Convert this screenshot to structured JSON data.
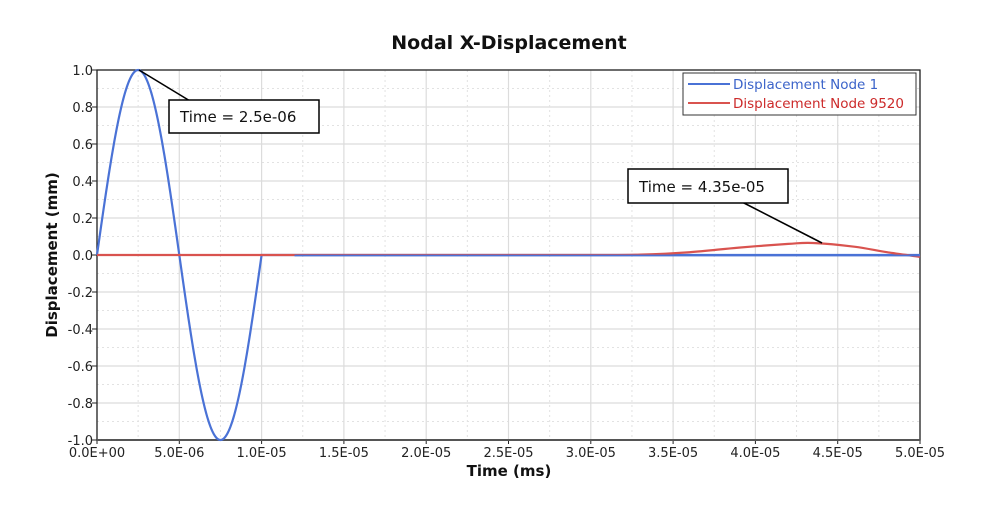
{
  "chart_data": {
    "type": "line",
    "title": "Nodal X-Displacement",
    "xlabel": "Time (ms)",
    "ylabel": "Displacement (mm)",
    "xlim": [
      0,
      5e-05
    ],
    "ylim": [
      -1.0,
      1.0
    ],
    "x_ticks": [
      0,
      5e-06,
      1e-05,
      1.5e-05,
      2e-05,
      2.5e-05,
      3e-05,
      3.5e-05,
      4e-05,
      4.5e-05,
      5e-05
    ],
    "x_tick_labels": [
      "0.0E+00",
      "5.0E-06",
      "1.0E-05",
      "1.5E-05",
      "2.0E-05",
      "2.5E-05",
      "3.0E-05",
      "3.5E-05",
      "4.0E-05",
      "4.5E-05",
      "5.0E-05"
    ],
    "y_ticks": [
      1.0,
      0.8,
      0.6,
      0.4,
      0.2,
      0.0,
      -0.2,
      -0.4,
      -0.6,
      -0.8,
      -1.0
    ],
    "y_tick_labels": [
      "1.0",
      "0.8",
      "0.6",
      "0.4",
      "0.2",
      "0.0",
      "-0.2",
      "-0.4",
      "-0.6",
      "-0.8",
      "-1.0"
    ],
    "grid": true,
    "legend_position": "top-right",
    "series": [
      {
        "name": "Displacement Node 1",
        "color": "#4a72d6",
        "x": [
          0,
          1.25e-06,
          2.5e-06,
          3.75e-06,
          5e-06,
          6.25e-06,
          7.5e-06,
          8.75e-06,
          1e-05,
          1.2e-05,
          2e-05,
          3e-05,
          4e-05,
          5e-05
        ],
        "y": [
          0,
          0.707,
          1.0,
          0.707,
          0,
          -0.707,
          -1.0,
          -0.707,
          0,
          0,
          0,
          0,
          0,
          0
        ]
      },
      {
        "name": "Displacement Node 9520",
        "color": "#d9534f",
        "x": [
          0,
          1e-05,
          2e-05,
          3e-05,
          3.3e-05,
          3.6e-05,
          3.9e-05,
          4.2e-05,
          4.35e-05,
          4.6e-05,
          4.8e-05,
          5e-05
        ],
        "y": [
          0,
          0,
          0,
          0,
          0.002,
          0.015,
          0.04,
          0.06,
          0.065,
          0.045,
          0.015,
          -0.01
        ]
      }
    ],
    "annotations": [
      {
        "text": "Time = 2.5e-06",
        "x": 2.5e-06,
        "y": 1.0
      },
      {
        "text": "Time = 4.35e-05",
        "x": 4.35e-05,
        "y": 0.065
      }
    ]
  },
  "legend": {
    "items": [
      {
        "label": "Displacement Node 1",
        "color": "#4a72d6",
        "text_color": "#3b63c9"
      },
      {
        "label": "Displacement Node 9520",
        "color": "#d9534f",
        "text_color": "#cc2a2a"
      }
    ]
  },
  "annotations": {
    "a1": "Time = 2.5e-06",
    "a2": "Time = 4.35e-05"
  }
}
